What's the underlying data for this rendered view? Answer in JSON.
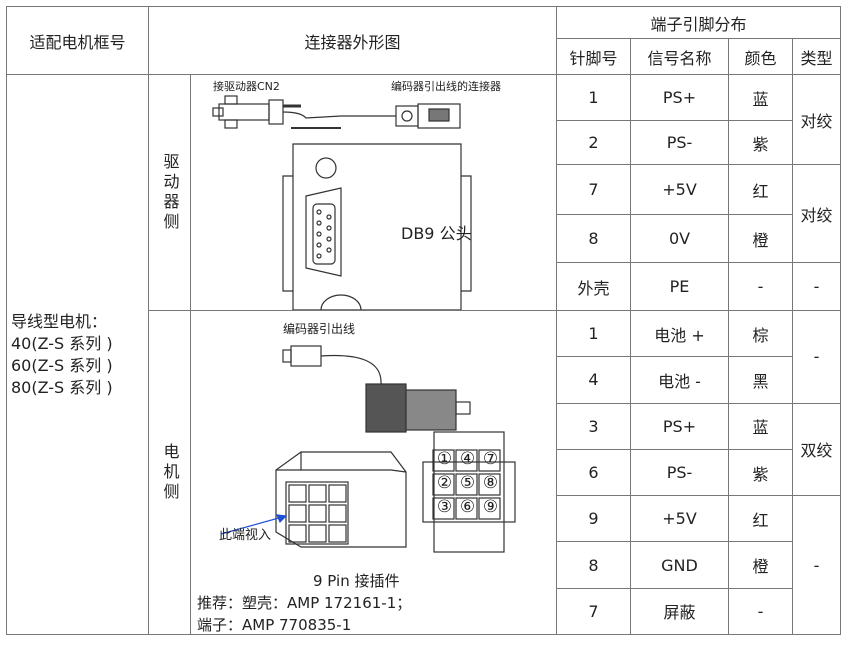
{
  "header": {
    "model": "适配电机框号",
    "shape": "连接器外形图",
    "pins": "端子引脚分布",
    "columns": [
      "针脚号",
      "信号名称",
      "颜色",
      "类型"
    ]
  },
  "motor_model": [
    "导线型电机：",
    "40(Z-S 系列 )",
    "60(Z-S 系列 )",
    "80(Z-S 系列 )"
  ],
  "sections": [
    {
      "side": "驱动器侧",
      "labels": {
        "left": "接驱动器CN2",
        "right": "编码器引出线的连接器",
        "connector": "DB9 公头"
      },
      "groups": [
        {
          "type": "对绞",
          "rows": [
            [
              "1",
              "PS+",
              "蓝"
            ],
            [
              "2",
              "PS-",
              "紫"
            ]
          ]
        },
        {
          "type": "对绞",
          "rows": [
            [
              "7",
              "+5V",
              "红"
            ],
            [
              "8",
              "0V",
              "橙"
            ]
          ]
        },
        {
          "type": "-",
          "rows": [
            [
              "外壳",
              "PE",
              "-"
            ]
          ]
        }
      ]
    },
    {
      "side": "电机侧",
      "labels": {
        "cable": "编码器引出线",
        "view": "此端视入",
        "connector": "9 Pin 接插件",
        "notes": [
          "推荐：塑壳：AMP 172161-1；",
          "端子：AMP 770835-1"
        ],
        "pin_grid": [
          "①",
          "④",
          "⑦",
          "②",
          "⑤",
          "⑧",
          "③",
          "⑥",
          "⑨"
        ]
      },
      "groups": [
        {
          "type": "-",
          "rows": [
            [
              "1",
              "电池 +",
              "棕"
            ],
            [
              "4",
              "电池 -",
              "黑"
            ]
          ]
        },
        {
          "type": "双绞",
          "rows": [
            [
              "3",
              "PS+",
              "蓝"
            ],
            [
              "6",
              "PS-",
              "紫"
            ]
          ]
        },
        {
          "type": "-",
          "rows": [
            [
              "9",
              "+5V",
              "红"
            ],
            [
              "8",
              "GND",
              "橙"
            ],
            [
              "7",
              "屏蔽",
              "-"
            ]
          ]
        }
      ]
    }
  ]
}
